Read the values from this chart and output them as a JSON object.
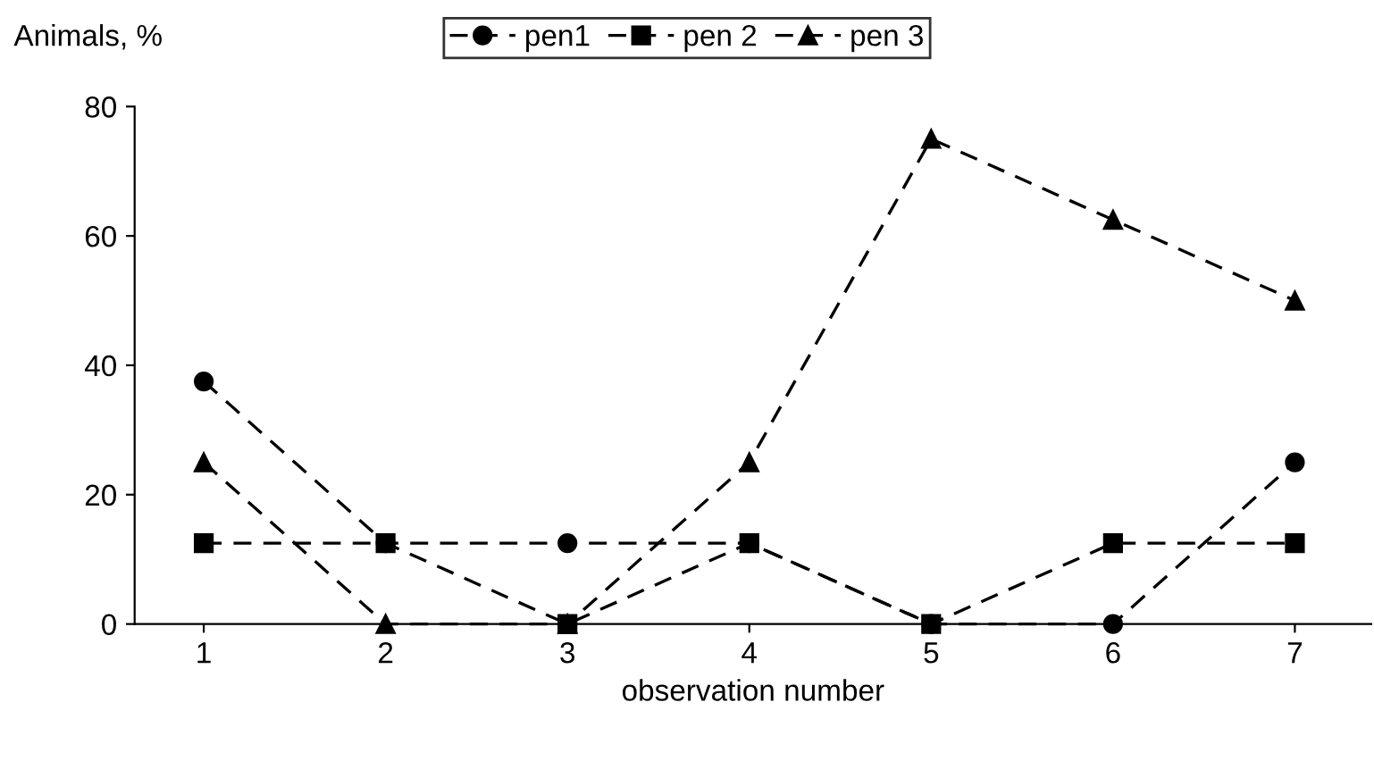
{
  "chart_data": {
    "type": "line",
    "ylabel": "Animals, %",
    "xlabel": "observation number",
    "categories": [
      "1",
      "2",
      "3",
      "4",
      "5",
      "6",
      "7"
    ],
    "series": [
      {
        "name": "pen1",
        "color": "#000000",
        "marker": "circle",
        "values": [
          37.5,
          12.5,
          12.5,
          12.5,
          0,
          0,
          25
        ]
      },
      {
        "name": "pen 2",
        "color": "#000000",
        "marker": "square",
        "values": [
          12.5,
          12.5,
          0,
          12.5,
          0,
          12.5,
          12.5
        ]
      },
      {
        "name": "pen 3",
        "color": "#000000",
        "marker": "triangle",
        "values": [
          25,
          0,
          0,
          25,
          75,
          62.5,
          50
        ]
      }
    ],
    "ylim": [
      0,
      80
    ],
    "yticks": [
      0,
      20,
      40,
      60,
      80
    ],
    "grid": false,
    "legend": "top",
    "line_style": "dashed"
  }
}
